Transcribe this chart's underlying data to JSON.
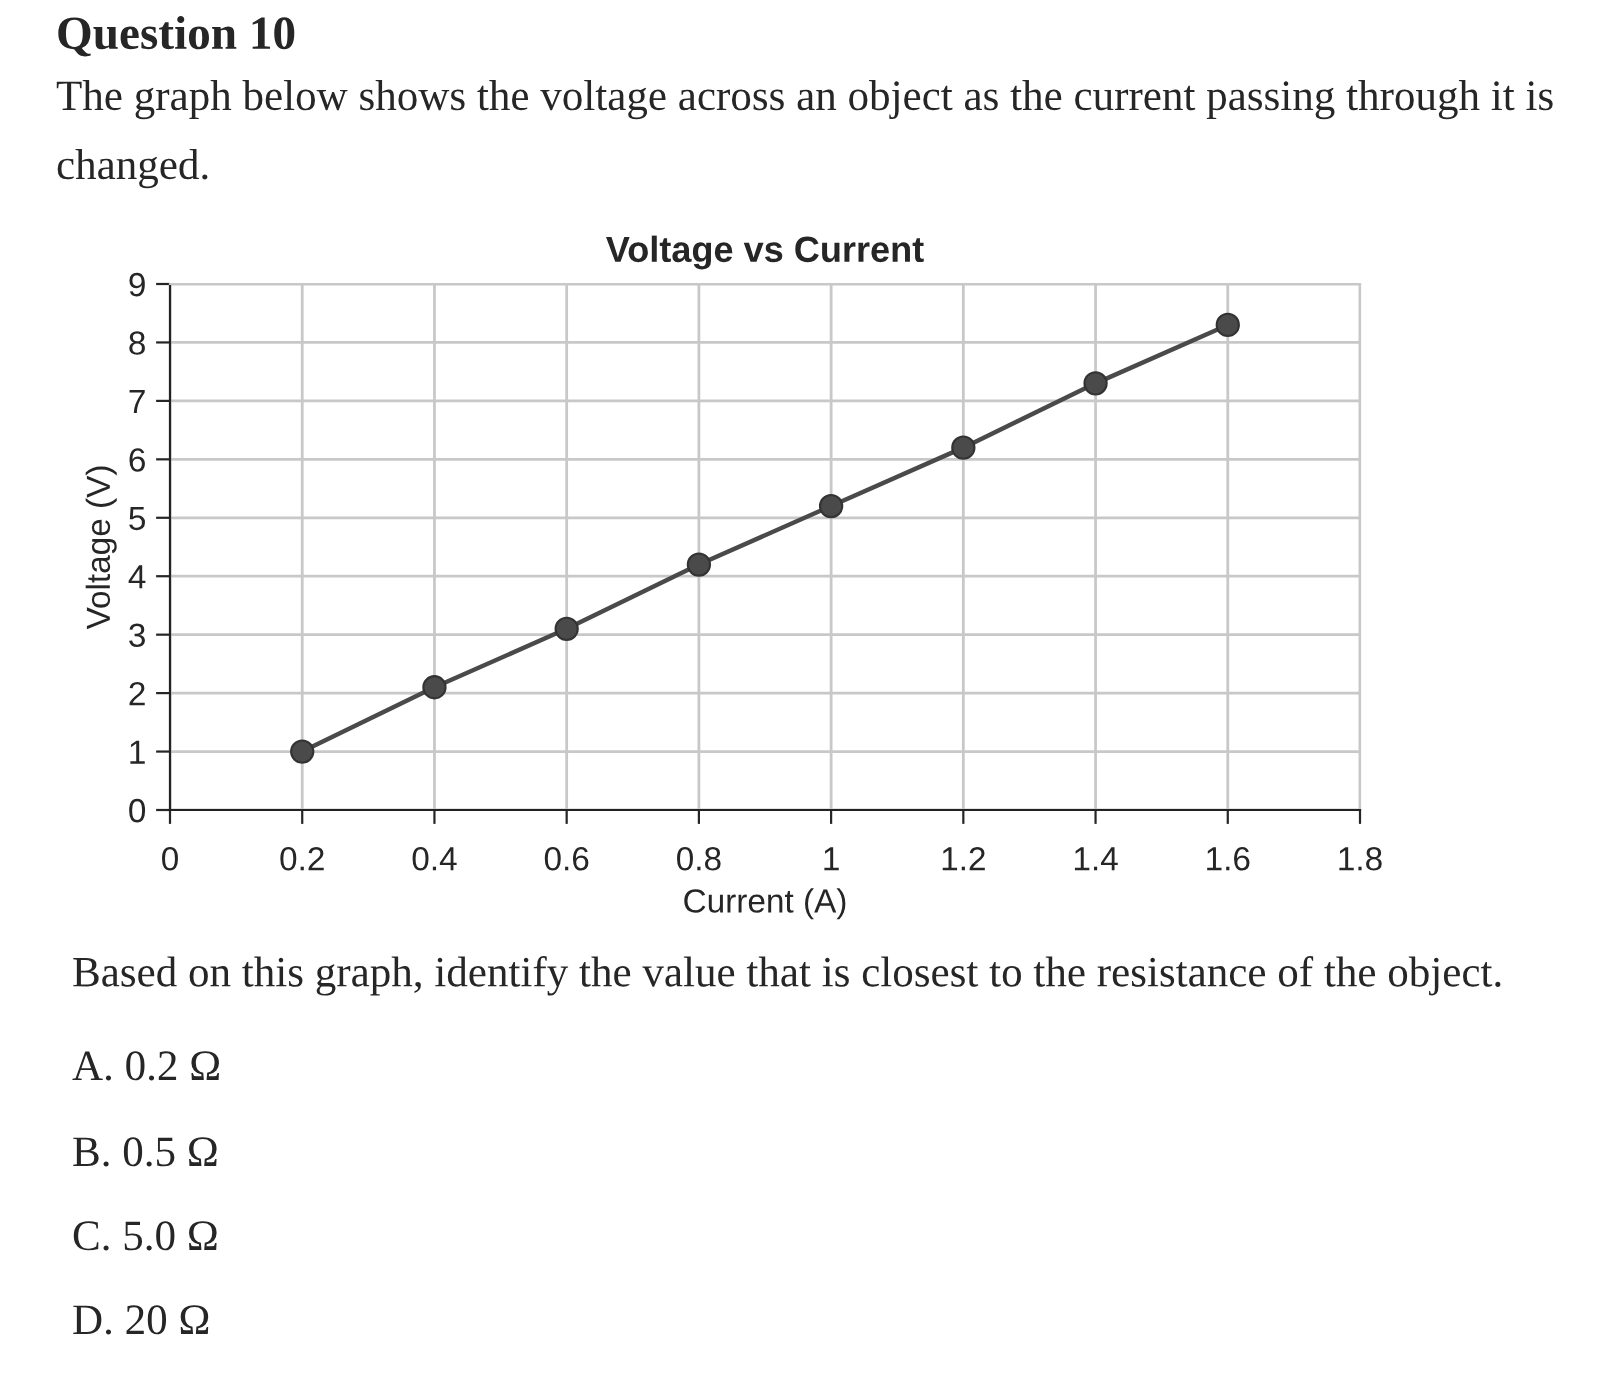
{
  "chart_data": {
    "type": "line",
    "title": "Voltage vs Current",
    "xlabel": "Current (A)",
    "ylabel": "Voltage (V)",
    "x": [
      0.2,
      0.4,
      0.6,
      0.8,
      1.0,
      1.2,
      1.4,
      1.6
    ],
    "series": [
      {
        "color": "#4a4a4a",
        "values": [
          1.0,
          2.1,
          3.1,
          4.2,
          5.2,
          6.2,
          7.3,
          8.3
        ]
      }
    ],
    "xlim": [
      0,
      1.8
    ],
    "xticks": [
      0,
      0.2,
      0.4,
      0.6,
      0.8,
      1,
      1.2,
      1.4,
      1.6,
      1.8
    ],
    "ylim": [
      0,
      9
    ],
    "yticks": [
      0,
      1,
      2,
      3,
      4,
      5,
      6,
      7,
      8,
      9
    ],
    "grid": true,
    "marker": "circle",
    "line_style": "solid",
    "legend": false,
    "annotations": [
      "Question 10",
      "The graph below shows the voltage across an object as the current passing through it is changed.",
      "Based on this graph, identify the value that is closest to the resistance of the object.",
      "A. 0.2 Ω",
      "B. 0.5 Ω",
      "C. 5.0 Ω",
      "D. 20 Ω"
    ]
  }
}
